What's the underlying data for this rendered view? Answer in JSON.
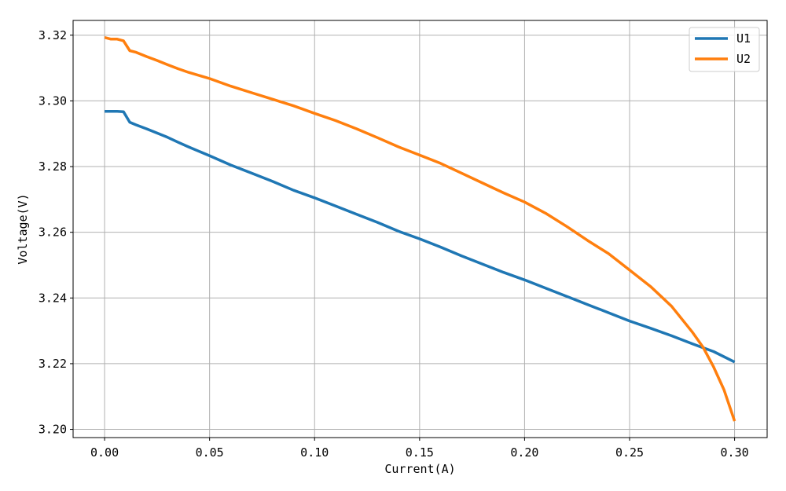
{
  "chart_data": {
    "type": "line",
    "title": "",
    "xlabel": "Current(A)",
    "ylabel": "Voltage(V)",
    "xlim": [
      -0.015,
      0.3155
    ],
    "ylim": [
      3.1975,
      3.3245
    ],
    "grid": true,
    "legend_position": "top-right",
    "x_ticks": [
      0.0,
      0.05,
      0.1,
      0.15,
      0.2,
      0.25,
      0.3
    ],
    "x_tick_labels": [
      "0.00",
      "0.05",
      "0.10",
      "0.15",
      "0.20",
      "0.25",
      "0.30"
    ],
    "y_ticks": [
      3.2,
      3.22,
      3.24,
      3.26,
      3.28,
      3.3,
      3.32
    ],
    "y_tick_labels": [
      "3.20",
      "3.22",
      "3.24",
      "3.26",
      "3.28",
      "3.30",
      "3.32"
    ],
    "series": [
      {
        "name": "U1",
        "color": "#1f77b4",
        "x": [
          0.0,
          0.003,
          0.006,
          0.009,
          0.012,
          0.015,
          0.02,
          0.025,
          0.03,
          0.035,
          0.04,
          0.05,
          0.06,
          0.07,
          0.08,
          0.09,
          0.1,
          0.11,
          0.12,
          0.13,
          0.14,
          0.15,
          0.16,
          0.17,
          0.18,
          0.19,
          0.2,
          0.21,
          0.22,
          0.23,
          0.24,
          0.25,
          0.26,
          0.27,
          0.28,
          0.29,
          0.3
        ],
        "y": [
          3.2968,
          3.2968,
          3.2968,
          3.2967,
          3.2935,
          3.2927,
          3.2915,
          3.2902,
          3.2889,
          3.2874,
          3.286,
          3.2833,
          3.2805,
          3.278,
          3.2755,
          3.2728,
          3.2705,
          3.268,
          3.2655,
          3.263,
          3.2603,
          3.258,
          3.2555,
          3.2528,
          3.2503,
          3.2478,
          3.2455,
          3.243,
          3.2405,
          3.238,
          3.2355,
          3.233,
          3.2308,
          3.2285,
          3.226,
          3.2237,
          3.2205
        ]
      },
      {
        "name": "U2",
        "color": "#ff7f0e",
        "x": [
          0.0,
          0.003,
          0.006,
          0.009,
          0.012,
          0.015,
          0.02,
          0.025,
          0.03,
          0.035,
          0.04,
          0.05,
          0.06,
          0.07,
          0.08,
          0.09,
          0.1,
          0.11,
          0.12,
          0.13,
          0.14,
          0.15,
          0.16,
          0.17,
          0.18,
          0.19,
          0.2,
          0.21,
          0.22,
          0.23,
          0.24,
          0.25,
          0.26,
          0.27,
          0.28,
          0.285,
          0.29,
          0.295,
          0.3
        ],
        "y": [
          3.3193,
          3.3188,
          3.3188,
          3.3183,
          3.3153,
          3.3148,
          3.3135,
          3.3123,
          3.311,
          3.3098,
          3.3087,
          3.3068,
          3.3045,
          3.3025,
          3.3005,
          3.2985,
          3.2962,
          3.294,
          3.2915,
          3.2888,
          3.286,
          3.2835,
          3.281,
          3.278,
          3.275,
          3.272,
          3.2692,
          3.2658,
          3.2618,
          3.2575,
          3.2535,
          3.2485,
          3.2435,
          3.2375,
          3.2295,
          3.225,
          3.219,
          3.212,
          3.2025
        ]
      }
    ]
  }
}
